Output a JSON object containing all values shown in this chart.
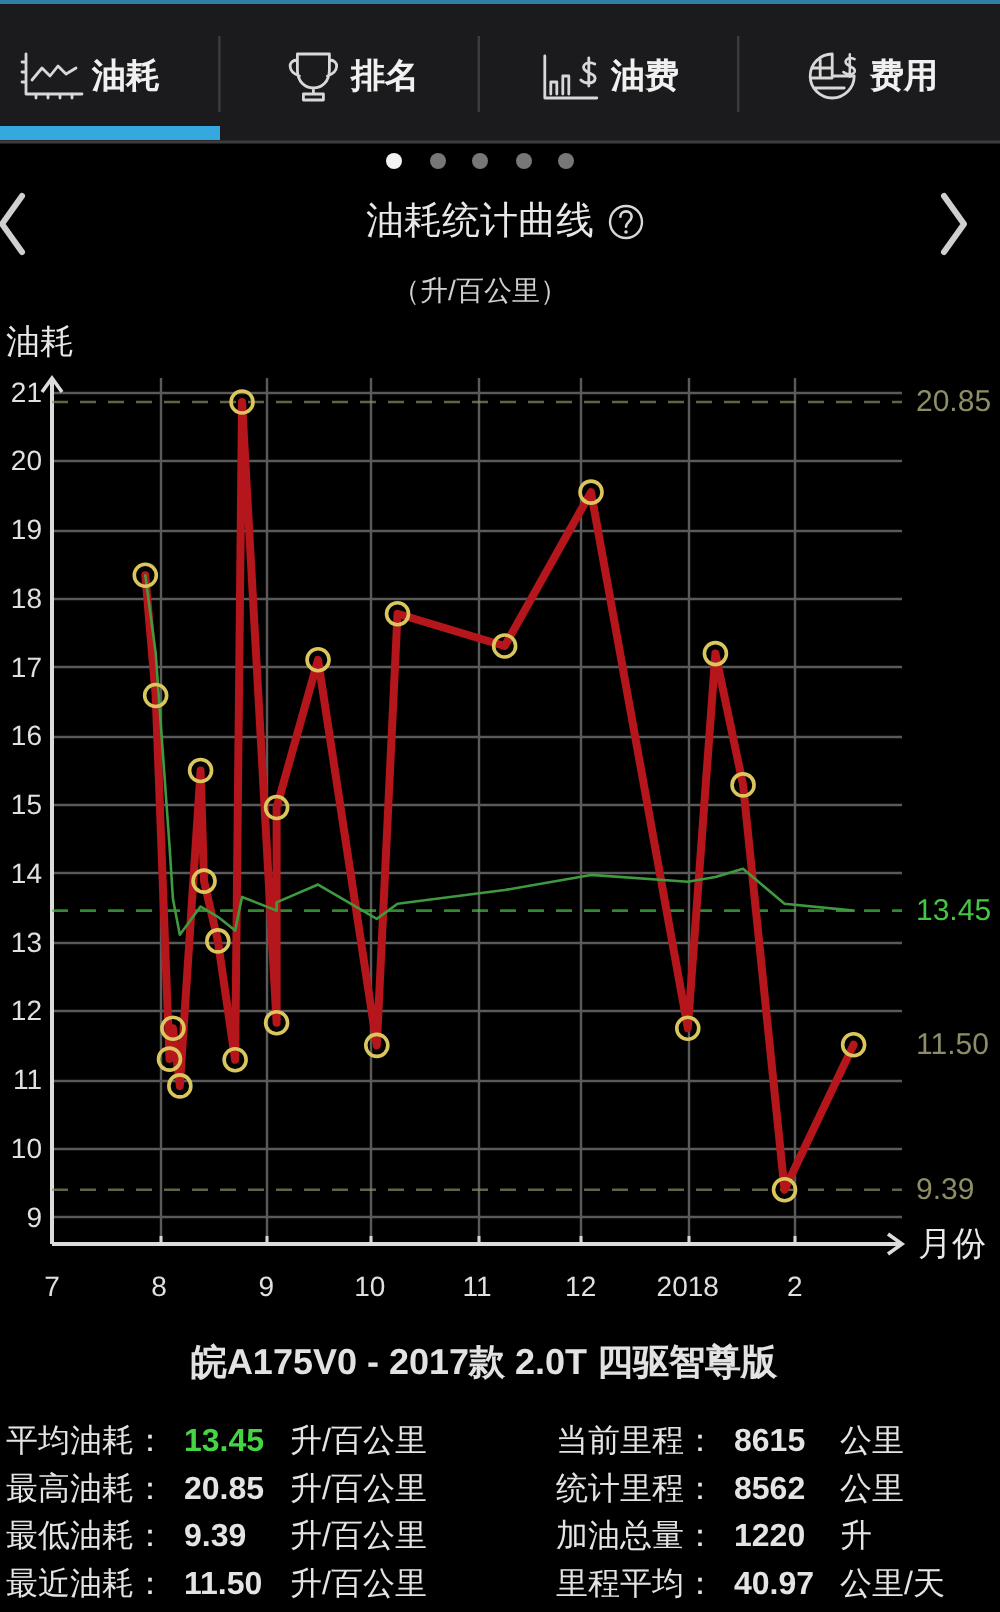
{
  "chart_data": [
    {
      "type": "other",
      "annotations": [
        "油耗",
        "排名",
        "油费",
        "费用"
      ]
    },
    {
      "type": "line",
      "title": "油耗统计曲线",
      "subtitle": "（升/百公里）",
      "xlabel": "月份",
      "ylabel": "油耗",
      "x": [
        "2017-07-28",
        "2017-07-31",
        "2017-08-04",
        "2017-08-05",
        "2017-08-07",
        "2017-08-13",
        "2017-08-14",
        "2017-08-18",
        "2017-08-23",
        "2017-08-25",
        "2017-09-04",
        "2017-09-04",
        "2017-09-16",
        "2017-10-03",
        "2017-10-09",
        "2017-11-09",
        "2017-12-04",
        "2018-01-01",
        "2018-01-09",
        "2018-01-17",
        "2018-01-29",
        "2018-02-18"
      ],
      "series": [
        {
          "color": "#b5161b",
          "values": [
            18.33,
            16.58,
            11.29,
            11.74,
            10.9,
            15.49,
            13.88,
            13.01,
            11.28,
            20.85,
            11.82,
            14.95,
            17.1,
            11.49,
            17.77,
            17.3,
            19.54,
            11.74,
            17.19,
            15.28,
            9.39,
            11.5
          ]
        },
        {
          "color": "#3f9a3f",
          "marker": "none",
          "values": [
            18.33,
            17.2,
            14.4,
            13.62,
            13.1,
            13.51,
            13.48,
            13.36,
            13.16,
            13.65,
            13.45,
            13.57,
            13.83,
            13.33,
            13.55,
            13.75,
            13.97,
            13.87,
            13.94,
            14.06,
            13.55,
            13.45
          ]
        }
      ],
      "marker": "circle",
      "xlim": [
        "2017-07-01",
        "2018-03-04"
      ],
      "ylim": [
        8.6,
        21.2
      ],
      "xticks": [
        {
          "value": "2017-07-01",
          "label": "7"
        },
        {
          "value": "2017-08-01",
          "label": "8"
        },
        {
          "value": "2017-09-01",
          "label": "9"
        },
        {
          "value": "2017-10-01",
          "label": "10"
        },
        {
          "value": "2017-11-01",
          "label": "11"
        },
        {
          "value": "2017-12-01",
          "label": "12"
        },
        {
          "value": "2018-01-01",
          "label": "2018"
        },
        {
          "value": "2018-02-01",
          "label": "2"
        }
      ],
      "yticks": [
        9,
        10,
        11,
        12,
        13,
        14,
        15,
        16,
        17,
        18,
        19,
        20,
        21
      ],
      "grid": true,
      "ref_lines": [
        {
          "axis": "y",
          "value": 20.85,
          "label": "20.85",
          "color": "#8d8d66",
          "line_style": "dashed"
        },
        {
          "axis": "y",
          "value": 13.45,
          "label": "13.45",
          "color": "#45c545",
          "line_style": "dashed"
        },
        {
          "axis": "y",
          "value": 9.39,
          "label": "9.39",
          "color": "#8d8d66",
          "line_style": "dashed"
        }
      ],
      "annotations": [
        {
          "text": "11.50",
          "x": "2018-02-18",
          "y": 11.5
        }
      ]
    },
    {
      "type": "other",
      "title": "皖A175V0 - 2017款 2.0T 四驱智尊版",
      "annotations": [
        "平均油耗：",
        "13.45",
        "升/百公里",
        "当前里程：",
        "8615",
        "公里",
        "最高油耗：",
        "20.85",
        "升/百公里",
        "统计里程：",
        "8562",
        "公里",
        "最低油耗：",
        "9.39",
        "升/百公里",
        "加油总量：",
        "1220",
        "升",
        "最近油耗：",
        "11.50",
        "升/百公里",
        "里程平均：",
        "40.97",
        "公里/天"
      ]
    }
  ]
}
